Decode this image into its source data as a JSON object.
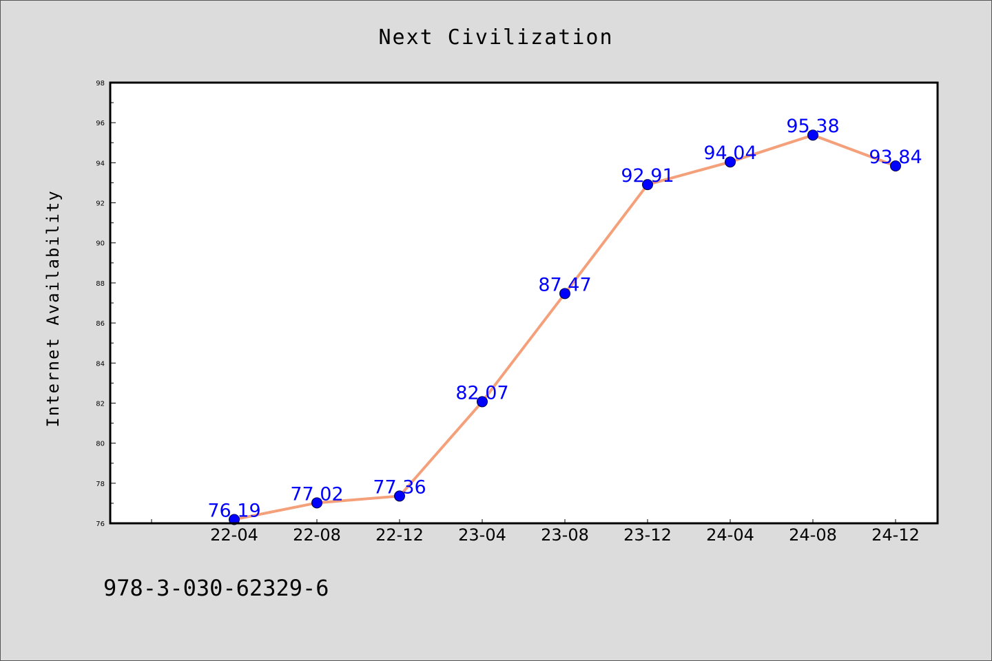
{
  "chart_data": {
    "type": "line",
    "title": "Next Civilization",
    "xlabel": "",
    "ylabel": "Internet Availability",
    "categories": [
      "22-04",
      "22-08",
      "22-12",
      "23-04",
      "23-08",
      "23-12",
      "24-04",
      "24-08",
      "24-12"
    ],
    "series": [
      {
        "values": [
          76.19,
          77.02,
          77.36,
          82.07,
          87.47,
          92.91,
          94.04,
          95.38,
          93.84
        ],
        "value_labels": [
          "76.19",
          "77.02",
          "77.36",
          "82.07",
          "87.47",
          "92.91",
          "94.04",
          "95.38",
          "93.84"
        ],
        "line_color": "#f4a07a",
        "marker_color": "#0000ff"
      }
    ],
    "ylim": [
      76,
      98
    ],
    "yticks": [
      "76",
      "78",
      "80",
      "82",
      "84",
      "86",
      "88",
      "90",
      "92",
      "94",
      "96",
      "98"
    ],
    "grid": false,
    "legend": "none"
  },
  "footnote": "978-3-030-62329-6",
  "colors": {
    "background": "#dcdcdc",
    "plot_background": "#ffffff",
    "label_color": "#0000ff"
  }
}
